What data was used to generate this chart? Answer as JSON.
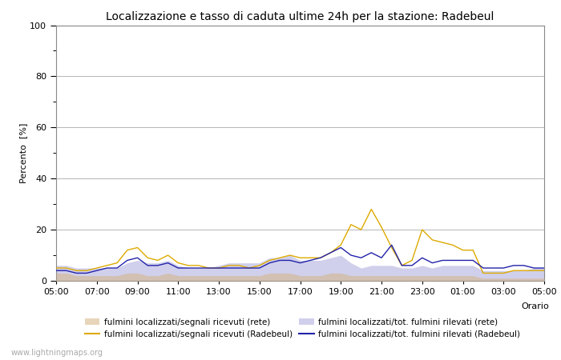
{
  "title": "Localizzazione e tasso di caduta ultime 24h per la stazione: Radebeul",
  "ylabel": "Percento  [%]",
  "xlabel": "Orario",
  "ylim": [
    0,
    100
  ],
  "yticks": [
    0,
    20,
    40,
    60,
    80,
    100
  ],
  "x_labels": [
    "05:00",
    "07:00",
    "09:00",
    "11:00",
    "13:00",
    "15:00",
    "17:00",
    "19:00",
    "21:00",
    "23:00",
    "01:00",
    "03:00",
    "05:00"
  ],
  "watermark": "www.lightningmaps.org",
  "bg_color": "#ffffff",
  "plot_bg_color": "#ffffff",
  "grid_color": "#aaaaaa",
  "x": [
    0,
    1,
    2,
    3,
    4,
    5,
    6,
    7,
    8,
    9,
    10,
    11,
    12,
    13,
    14,
    15,
    16,
    17,
    18,
    19,
    20,
    21,
    22,
    23,
    24,
    25,
    26,
    27,
    28,
    29,
    30,
    31,
    32,
    33,
    34,
    35,
    36,
    37,
    38,
    39,
    40,
    41,
    42,
    43,
    44,
    45,
    46,
    47,
    48
  ],
  "yellow_fill": [
    3,
    3,
    2,
    2,
    2,
    2,
    2,
    3,
    3,
    2,
    2,
    3,
    2,
    2,
    2,
    2,
    2,
    2,
    2,
    2,
    2,
    3,
    3,
    3,
    2,
    2,
    2,
    3,
    3,
    2,
    2,
    2,
    2,
    2,
    2,
    2,
    2,
    2,
    2,
    2,
    2,
    2,
    1,
    1,
    1,
    1,
    1,
    1,
    1
  ],
  "blue_fill": [
    6,
    6,
    5,
    5,
    5,
    5,
    5,
    7,
    8,
    7,
    7,
    8,
    6,
    5,
    5,
    5,
    6,
    7,
    7,
    7,
    7,
    9,
    9,
    10,
    8,
    8,
    8,
    9,
    10,
    7,
    5,
    6,
    6,
    6,
    5,
    5,
    6,
    5,
    6,
    6,
    6,
    6,
    4,
    4,
    4,
    4,
    4,
    5,
    5
  ],
  "yellow_line": [
    5,
    5,
    4,
    4,
    5,
    6,
    7,
    12,
    13,
    9,
    8,
    10,
    7,
    6,
    6,
    5,
    5,
    6,
    6,
    5,
    6,
    8,
    9,
    10,
    9,
    9,
    9,
    11,
    14,
    22,
    20,
    28,
    21,
    13,
    6,
    8,
    20,
    16,
    15,
    14,
    12,
    12,
    3,
    3,
    3,
    4,
    4,
    4,
    4
  ],
  "blue_line": [
    4,
    4,
    3,
    3,
    4,
    5,
    5,
    8,
    9,
    6,
    6,
    7,
    5,
    5,
    5,
    5,
    5,
    5,
    5,
    5,
    5,
    7,
    8,
    8,
    7,
    8,
    9,
    11,
    13,
    10,
    9,
    11,
    9,
    14,
    6,
    6,
    9,
    7,
    8,
    8,
    8,
    8,
    5,
    5,
    5,
    6,
    6,
    5,
    5
  ],
  "yellow_fill_color": "#d4b483",
  "yellow_fill_alpha": 0.55,
  "blue_fill_color": "#aaaadd",
  "blue_fill_alpha": 0.55,
  "yellow_line_color": "#ddaa00",
  "blue_line_color": "#2222aa",
  "line_width": 1.0
}
